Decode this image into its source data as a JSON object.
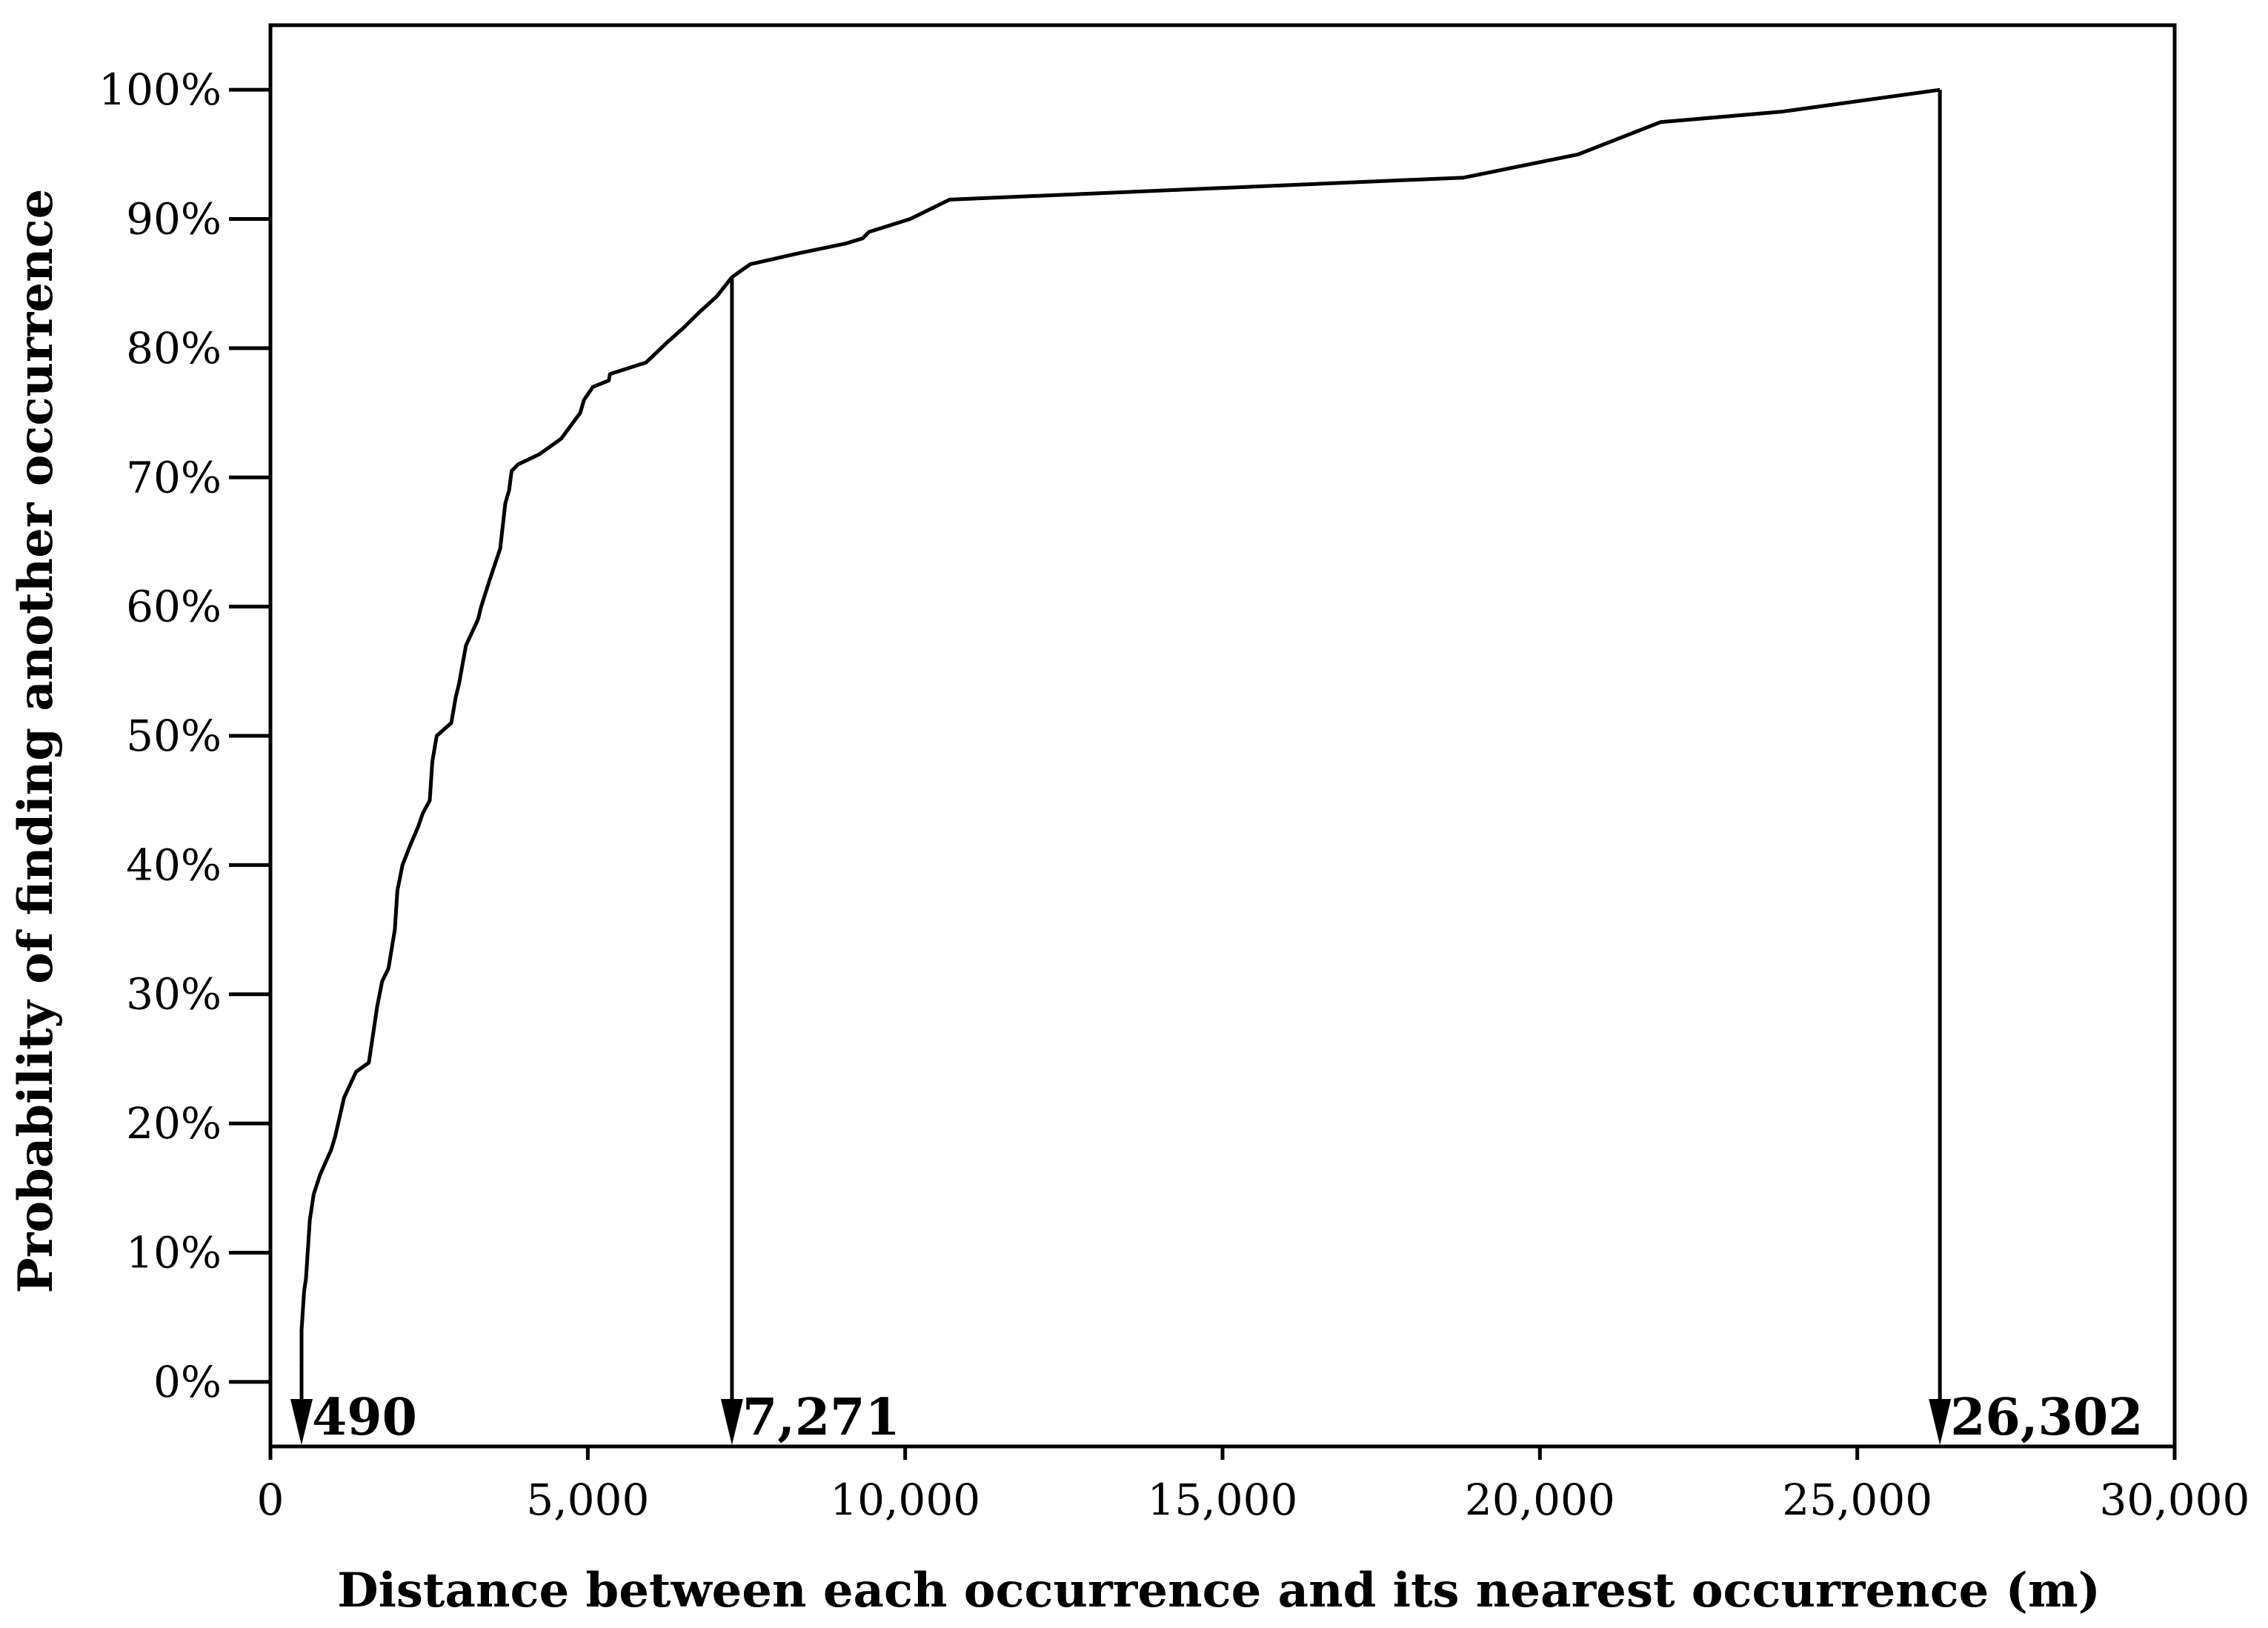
{
  "chart_data": {
    "type": "line",
    "title": "",
    "xlabel": "Distance between each occurrence and its nearest occurrence  (m)",
    "ylabel": "Probability of finding another occurrence",
    "xlim": [
      0,
      30000
    ],
    "ylim": [
      -5,
      105
    ],
    "x_ticks": [
      0,
      5000,
      10000,
      15000,
      20000,
      25000,
      30000
    ],
    "x_tick_labels": [
      "0",
      "5,000",
      "10,000",
      "15,000",
      "20,000",
      "25,000",
      "30,000"
    ],
    "y_ticks": [
      0,
      10,
      20,
      30,
      40,
      50,
      60,
      70,
      80,
      90,
      100
    ],
    "y_tick_labels": [
      "0%",
      "10%",
      "20%",
      "30%",
      "40%",
      "50%",
      "60%",
      "70%",
      "80%",
      "90%",
      "100%"
    ],
    "grid": false,
    "series": [
      {
        "x": [
          490,
          490,
          530,
          560,
          600,
          620,
          680,
          780,
          960,
          1020,
          1160,
          1350,
          1550,
          1620,
          1680,
          1760,
          1860,
          1960,
          2000,
          2080,
          2200,
          2330,
          2400,
          2510,
          2550,
          2620,
          2850,
          2920,
          2970,
          3080,
          3270,
          3320,
          3450,
          3620,
          3700,
          3760,
          3800,
          3900,
          4240,
          4580,
          4880,
          4940,
          5080,
          5330,
          5350,
          5920,
          6260,
          6490,
          6760,
          7030,
          7271,
          7560,
          8280,
          9060,
          9330,
          9430,
          10080,
          10700,
          18800,
          20600,
          21900,
          23800,
          26302
        ],
        "y": [
          1.5,
          4,
          7,
          8,
          11,
          12.5,
          14.5,
          16,
          18,
          19,
          22,
          24,
          24.7,
          27,
          29,
          31,
          32,
          35,
          38,
          40,
          41.5,
          43,
          44,
          45,
          48,
          50,
          51,
          53,
          54,
          57,
          59,
          60,
          62,
          64.5,
          68,
          69,
          70.5,
          71,
          71.8,
          73,
          75,
          76,
          77,
          77.5,
          78,
          78.9,
          80.5,
          81.5,
          82.8,
          84,
          85.5,
          86.5,
          87.3,
          88.1,
          88.5,
          89,
          90,
          91.5,
          93.2,
          95,
          97.5,
          98.3,
          100
        ]
      }
    ],
    "markers": [
      {
        "x": 490,
        "label": "490"
      },
      {
        "x": 7271,
        "label": "7,271"
      },
      {
        "x": 26302,
        "label": "26,302"
      }
    ]
  }
}
